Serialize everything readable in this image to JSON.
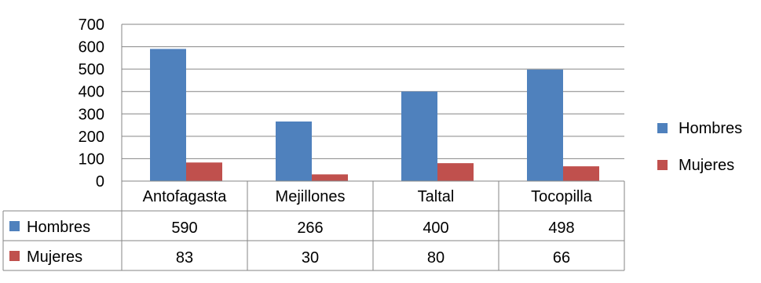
{
  "chart_data": {
    "type": "bar",
    "categories": [
      "Antofagasta",
      "Mejillones",
      "Taltal",
      "Tocopilla"
    ],
    "series": [
      {
        "name": "Hombres",
        "values": [
          590,
          266,
          400,
          498
        ],
        "color": "#4F81BD"
      },
      {
        "name": "Mujeres",
        "values": [
          83,
          30,
          80,
          66
        ],
        "color": "#C0504D"
      }
    ],
    "title": "",
    "xlabel": "",
    "ylabel": "",
    "ylim": [
      0,
      700
    ],
    "yticks": [
      0,
      100,
      200,
      300,
      400,
      500,
      600,
      700
    ],
    "grid": true,
    "legend": "right",
    "data_table": true
  }
}
